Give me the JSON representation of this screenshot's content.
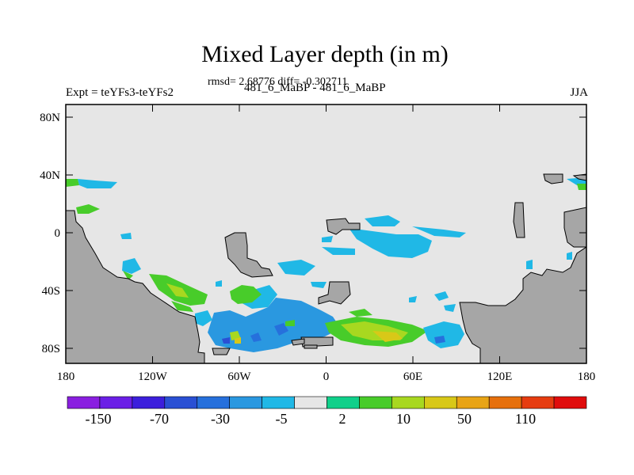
{
  "title": "Mixed Layer depth (in m)",
  "stats": "rmsd= 2.68776 diff= -0.302711",
  "experiment": "Expt = teYFs3-teYFs2",
  "cases": "481_6_MaBP - 481_6_MaBP",
  "season": "JJA",
  "lat_labels": [
    "80N",
    "40N",
    "0",
    "40S",
    "80S"
  ],
  "lon_labels": [
    "180",
    "120W",
    "60W",
    "0",
    "60E",
    "120E",
    "180"
  ],
  "colorbar": {
    "labels": [
      "-150",
      "-70",
      "-30",
      "-5",
      "2",
      "10",
      "50",
      "110"
    ],
    "colors": [
      "#8a1fe0",
      "#6b1fe6",
      "#3c1fdc",
      "#2a50d4",
      "#2670dc",
      "#2a98e0",
      "#20b8e6",
      "#e6e6e6",
      "#10d08a",
      "#48cc2a",
      "#a8d820",
      "#d8c818",
      "#e8a416",
      "#e6700c",
      "#e63c10",
      "#e00c0c"
    ]
  },
  "map_colors": {
    "land": "#a6a6a6",
    "ocean_neutral": "#e6e6e6"
  }
}
